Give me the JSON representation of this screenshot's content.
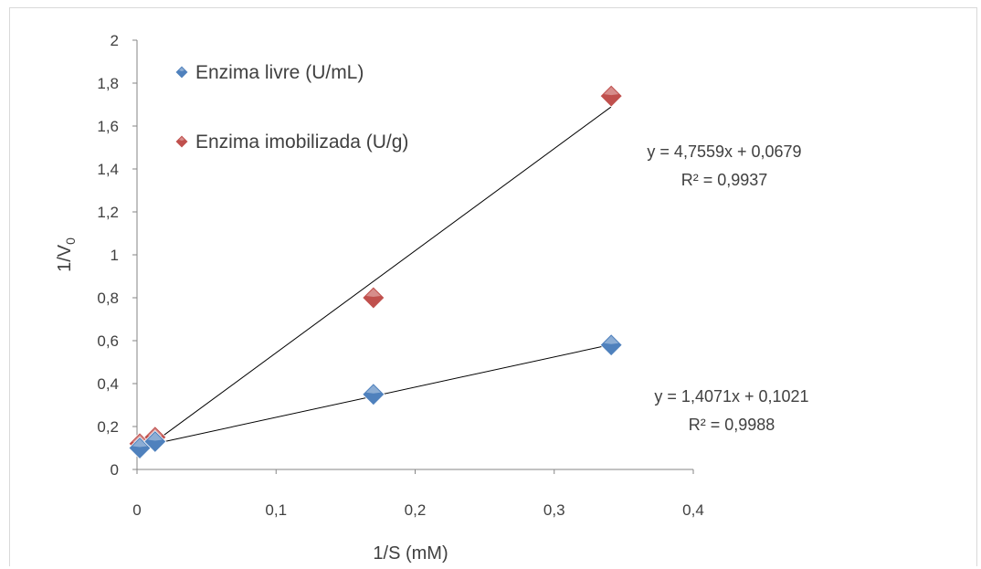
{
  "chart_data": {
    "type": "scatter",
    "xlabel": "1/S (mM)",
    "ylabel": "1/V",
    "ylabel_sub": "0",
    "xlim": [
      0,
      0.4
    ],
    "ylim": [
      0,
      2
    ],
    "x_ticks": [
      0,
      0.1,
      0.2,
      0.3,
      0.4
    ],
    "x_tick_labels": [
      "0",
      "0,1",
      "0,2",
      "0,3",
      "0,4"
    ],
    "y_ticks": [
      0,
      0.2,
      0.4,
      0.6,
      0.8,
      1,
      1.2,
      1.4,
      1.6,
      1.8,
      2
    ],
    "y_tick_labels": [
      "0",
      "0,2",
      "0,4",
      "0,6",
      "0,8",
      "1",
      "1,2",
      "1,4",
      "1,6",
      "1,8",
      "2"
    ],
    "grid": false,
    "legend_position": "top-left",
    "series": [
      {
        "name": "Enzima livre (U/mL)",
        "color": "#4f81bd",
        "marker": "diamond",
        "x": [
          0.002,
          0.013,
          0.17,
          0.341
        ],
        "y": [
          0.1,
          0.13,
          0.35,
          0.58
        ],
        "trendline": {
          "slope": 1.4071,
          "intercept": 0.1021,
          "equation": "y = 1,4071x + 0,1021",
          "r2": "R² = 0,9988"
        }
      },
      {
        "name": "Enzima imobilizada (U/g)",
        "color": "#c0504d",
        "marker": "diamond",
        "x": [
          0.002,
          0.013,
          0.17,
          0.341
        ],
        "y": [
          0.12,
          0.15,
          0.8,
          1.74
        ],
        "trendline": {
          "slope": 4.7559,
          "intercept": 0.0679,
          "equation": "y = 4,7559x + 0,0679",
          "r2": "R² = 0,9937"
        }
      }
    ]
  }
}
